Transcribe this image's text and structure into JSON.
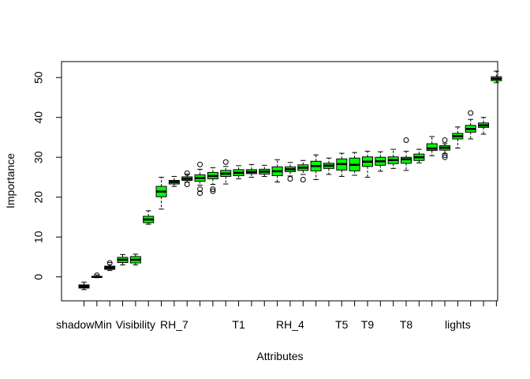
{
  "chart_data": {
    "type": "box",
    "title": "",
    "xlabel": "Attributes",
    "ylabel": "Importance",
    "ylim": [
      -6,
      54
    ],
    "yticks": [
      0,
      10,
      20,
      30,
      40,
      50
    ],
    "xtick_labels": [
      {
        "index": 1,
        "label": "shadowMin"
      },
      {
        "index": 5,
        "label": "Visibility"
      },
      {
        "index": 8,
        "label": "RH_7"
      },
      {
        "index": 13,
        "label": "T1"
      },
      {
        "index": 17,
        "label": "RH_4"
      },
      {
        "index": 21,
        "label": "T5"
      },
      {
        "index": 23,
        "label": "T9"
      },
      {
        "index": 26,
        "label": "T8"
      },
      {
        "index": 30,
        "label": "lights"
      }
    ],
    "boxes": [
      {
        "index": 1,
        "fill": "#000000",
        "min": -3.2,
        "q1": -2.8,
        "median": -2.4,
        "q3": -2.0,
        "max": -1.3,
        "outliers": []
      },
      {
        "index": 2,
        "fill": "#000000",
        "min": -0.2,
        "q1": -0.1,
        "median": 0.0,
        "q3": 0.1,
        "max": 0.5,
        "outliers": [
          0.4
        ]
      },
      {
        "index": 3,
        "fill": "#000000",
        "min": 1.6,
        "q1": 1.9,
        "median": 2.3,
        "q3": 2.7,
        "max": 3.6,
        "outliers": [
          3.5
        ]
      },
      {
        "index": 4,
        "fill": "#00ff00",
        "min": 3.0,
        "q1": 3.6,
        "median": 4.3,
        "q3": 4.9,
        "max": 5.6,
        "outliers": []
      },
      {
        "index": 5,
        "fill": "#00ff00",
        "min": 3.0,
        "q1": 3.5,
        "median": 4.3,
        "q3": 5.1,
        "max": 5.7,
        "outliers": []
      },
      {
        "index": 6,
        "fill": "#00ff00",
        "min": 13.2,
        "q1": 13.6,
        "median": 14.4,
        "q3": 15.2,
        "max": 16.6,
        "outliers": []
      },
      {
        "index": 7,
        "fill": "#00ff00",
        "min": 17.0,
        "q1": 20.1,
        "median": 21.4,
        "q3": 22.7,
        "max": 25.0,
        "outliers": []
      },
      {
        "index": 8,
        "fill": "#00ff00",
        "min": 22.7,
        "q1": 23.3,
        "median": 23.8,
        "q3": 24.2,
        "max": 25.2,
        "outliers": []
      },
      {
        "index": 9,
        "fill": "#00ff00",
        "min": 23.8,
        "q1": 24.2,
        "median": 24.6,
        "q3": 25.1,
        "max": 25.8,
        "outliers": [
          26.0,
          23.2
        ]
      },
      {
        "index": 10,
        "fill": "#00ff00",
        "min": 23.0,
        "q1": 24.0,
        "median": 24.8,
        "q3": 25.6,
        "max": 27.0,
        "outliers": [
          28.2,
          22.0,
          21.0
        ]
      },
      {
        "index": 11,
        "fill": "#00ff00",
        "min": 23.2,
        "q1": 24.6,
        "median": 25.3,
        "q3": 26.2,
        "max": 27.4,
        "outliers": [
          22.0,
          21.5
        ]
      },
      {
        "index": 12,
        "fill": "#00ff00",
        "min": 23.3,
        "q1": 25.2,
        "median": 25.9,
        "q3": 26.7,
        "max": 27.7,
        "outliers": [
          28.8
        ]
      },
      {
        "index": 13,
        "fill": "#00ff00",
        "min": 24.6,
        "q1": 25.4,
        "median": 26.1,
        "q3": 26.9,
        "max": 27.9,
        "outliers": []
      },
      {
        "index": 14,
        "fill": "#00ff00",
        "min": 25.0,
        "q1": 25.9,
        "median": 26.3,
        "q3": 26.9,
        "max": 28.2,
        "outliers": []
      },
      {
        "index": 15,
        "fill": "#00ff00",
        "min": 25.2,
        "q1": 25.8,
        "median": 26.4,
        "q3": 27.0,
        "max": 28.0,
        "outliers": []
      },
      {
        "index": 16,
        "fill": "#00ff00",
        "min": 23.8,
        "q1": 25.4,
        "median": 26.5,
        "q3": 27.6,
        "max": 29.4,
        "outliers": []
      },
      {
        "index": 17,
        "fill": "#00ff00",
        "min": 25.3,
        "q1": 26.4,
        "median": 27.0,
        "q3": 27.6,
        "max": 28.7,
        "outliers": [
          24.6
        ]
      },
      {
        "index": 18,
        "fill": "#00ff00",
        "min": 25.7,
        "q1": 26.7,
        "median": 27.4,
        "q3": 28.1,
        "max": 29.2,
        "outliers": [
          24.4
        ]
      },
      {
        "index": 19,
        "fill": "#00ff00",
        "min": 24.4,
        "q1": 26.6,
        "median": 27.8,
        "q3": 29.0,
        "max": 30.6,
        "outliers": []
      },
      {
        "index": 20,
        "fill": "#00ff00",
        "min": 25.7,
        "q1": 27.2,
        "median": 27.9,
        "q3": 28.5,
        "max": 29.8,
        "outliers": []
      },
      {
        "index": 21,
        "fill": "#00ff00",
        "min": 25.2,
        "q1": 26.8,
        "median": 28.3,
        "q3": 29.6,
        "max": 31.0,
        "outliers": []
      },
      {
        "index": 22,
        "fill": "#00ff00",
        "min": 25.5,
        "q1": 26.6,
        "median": 28.1,
        "q3": 29.8,
        "max": 31.2,
        "outliers": []
      },
      {
        "index": 23,
        "fill": "#00ff00",
        "min": 25.0,
        "q1": 27.7,
        "median": 28.9,
        "q3": 30.1,
        "max": 31.5,
        "outliers": []
      },
      {
        "index": 24,
        "fill": "#00ff00",
        "min": 26.5,
        "q1": 28.0,
        "median": 29.0,
        "q3": 30.0,
        "max": 31.4,
        "outliers": []
      },
      {
        "index": 25,
        "fill": "#00ff00",
        "min": 27.2,
        "q1": 28.4,
        "median": 29.3,
        "q3": 30.1,
        "max": 32.0,
        "outliers": []
      },
      {
        "index": 26,
        "fill": "#00ff00",
        "min": 26.7,
        "q1": 28.5,
        "median": 29.5,
        "q3": 30.0,
        "max": 31.5,
        "outliers": [
          34.3
        ]
      },
      {
        "index": 27,
        "fill": "#00ff00",
        "min": 28.6,
        "q1": 29.2,
        "median": 30.0,
        "q3": 30.8,
        "max": 32.0,
        "outliers": []
      },
      {
        "index": 28,
        "fill": "#00ff00",
        "min": 30.4,
        "q1": 31.7,
        "median": 32.2,
        "q3": 33.4,
        "max": 35.2,
        "outliers": []
      },
      {
        "index": 29,
        "fill": "#00ff00",
        "min": 30.9,
        "q1": 31.8,
        "median": 32.4,
        "q3": 32.9,
        "max": 33.4,
        "outliers": [
          34.3,
          30.5,
          30.0
        ]
      },
      {
        "index": 30,
        "fill": "#00ff00",
        "min": 32.3,
        "q1": 34.6,
        "median": 35.3,
        "q3": 36.0,
        "max": 37.6,
        "outliers": []
      },
      {
        "index": 31,
        "fill": "#00ff00",
        "min": 34.6,
        "q1": 36.3,
        "median": 37.1,
        "q3": 38.0,
        "max": 39.5,
        "outliers": [
          41.1
        ]
      },
      {
        "index": 32,
        "fill": "#00ff00",
        "min": 35.8,
        "q1": 37.5,
        "median": 38.0,
        "q3": 38.6,
        "max": 40.0,
        "outliers": []
      },
      {
        "index": 33,
        "fill": "#00ff00",
        "min": 48.7,
        "q1": 49.2,
        "median": 49.7,
        "q3": 50.2,
        "max": 51.6,
        "outliers": []
      }
    ],
    "n_boxes": 33,
    "grid": false,
    "legend": "none"
  }
}
